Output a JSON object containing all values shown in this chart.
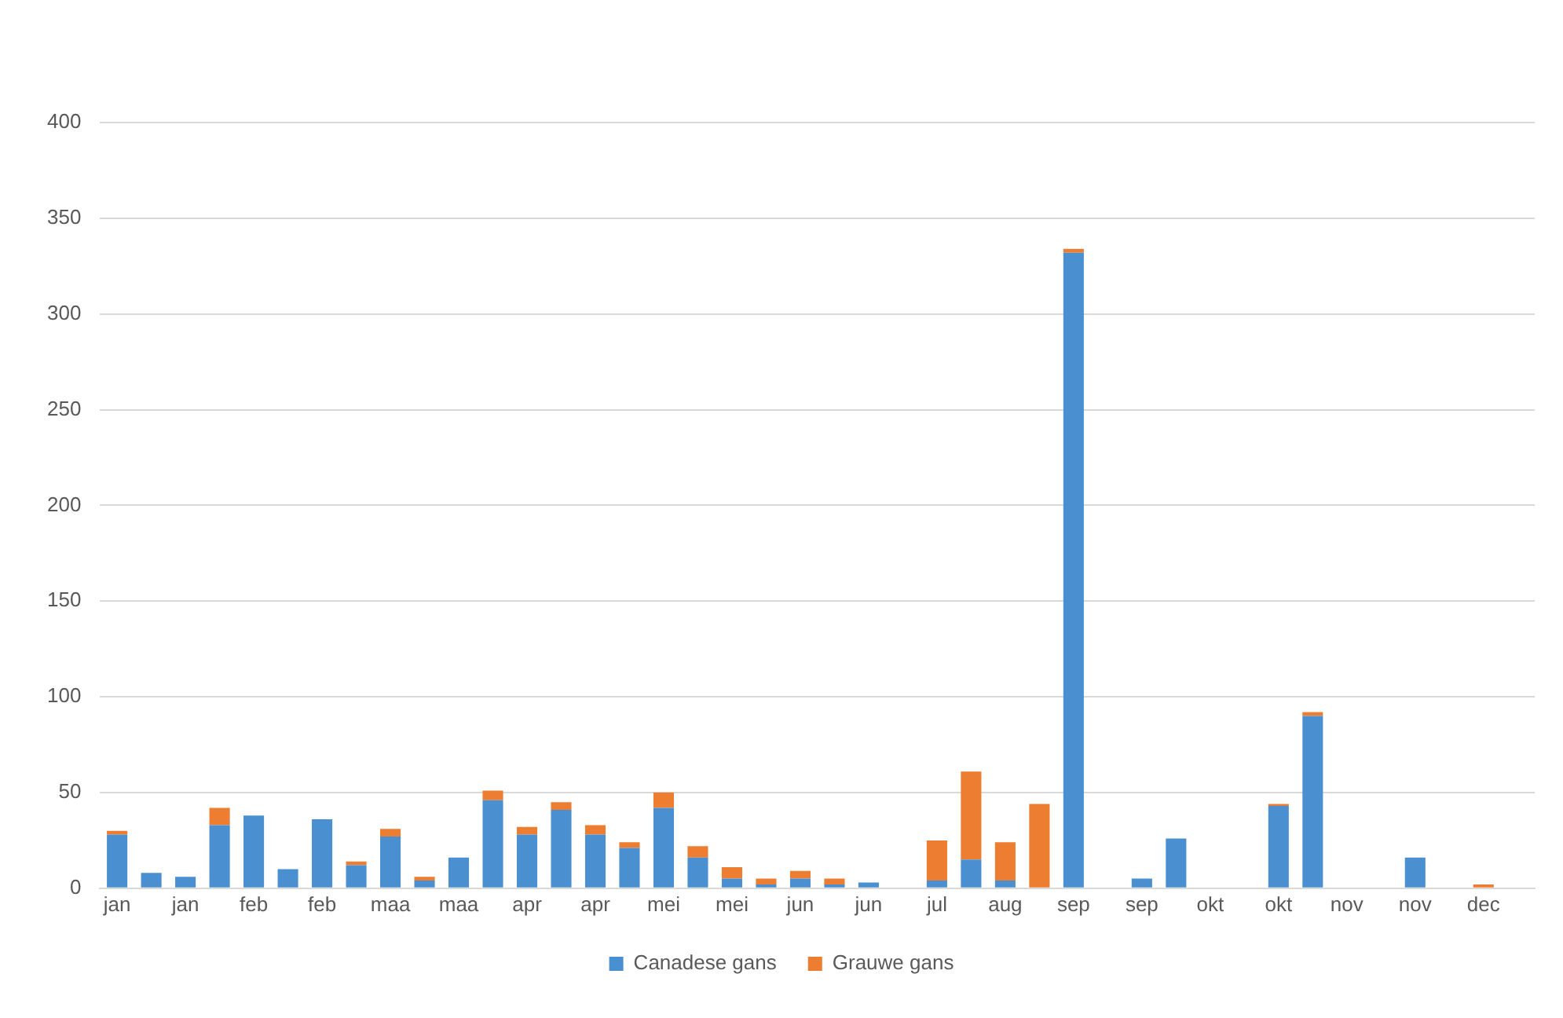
{
  "chart_data": {
    "type": "bar",
    "stacked": true,
    "categories": [
      "jan",
      null,
      "jan",
      null,
      "feb",
      null,
      "feb",
      null,
      "maa",
      null,
      "maa",
      null,
      "apr",
      null,
      "apr",
      null,
      "mei",
      null,
      "mei",
      null,
      "jun",
      null,
      "jun",
      null,
      "jul",
      null,
      "aug",
      null,
      "sep",
      null,
      "sep",
      null,
      "okt",
      null,
      "okt",
      null,
      "nov",
      null,
      "nov",
      null,
      "dec",
      null
    ],
    "series": [
      {
        "name": "Canadese gans",
        "color": "#4a90d0",
        "values": [
          28,
          8,
          6,
          33,
          38,
          10,
          36,
          12,
          27,
          4,
          16,
          46,
          28,
          41,
          28,
          21,
          42,
          16,
          5,
          2,
          5,
          2,
          3,
          0,
          4,
          15,
          4,
          0,
          332,
          0,
          5,
          26,
          0,
          0,
          43,
          90,
          0,
          0,
          16,
          0,
          0,
          0
        ]
      },
      {
        "name": "Grauwe gans",
        "color": "#ed7d31",
        "values": [
          2,
          0,
          0,
          9,
          0,
          0,
          0,
          2,
          4,
          2,
          0,
          5,
          4,
          4,
          5,
          3,
          8,
          6,
          6,
          3,
          4,
          3,
          0,
          0,
          21,
          46,
          20,
          44,
          2,
          0,
          0,
          0,
          0,
          0,
          1,
          2,
          0,
          0,
          0,
          0,
          2,
          0
        ]
      }
    ],
    "ylim": [
      0,
      400
    ],
    "yticks": [
      0,
      50,
      100,
      150,
      200,
      250,
      300,
      350,
      400
    ],
    "grid": "y",
    "legend": "bottom"
  }
}
